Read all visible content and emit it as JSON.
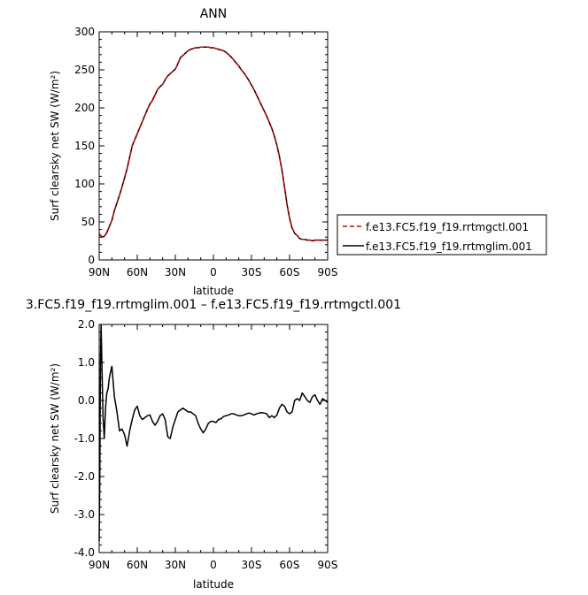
{
  "chart_data": [
    {
      "type": "line",
      "title": "ANN",
      "xlabel": "latitude",
      "ylabel": "Surf clearsky net SW (W/m²)",
      "xlim": [
        90,
        -90
      ],
      "ylim": [
        0,
        300
      ],
      "xticks": [
        90,
        60,
        30,
        0,
        -30,
        -60,
        -90
      ],
      "xtick_labels": [
        "90N",
        "60N",
        "30N",
        "0",
        "30S",
        "60S",
        "90S"
      ],
      "yticks": [
        0,
        50,
        100,
        150,
        200,
        250,
        300
      ],
      "ytick_labels": [
        "0",
        "50",
        "100",
        "150",
        "200",
        "250",
        "300"
      ],
      "legend_position": "right",
      "series": [
        {
          "name": "f.e13.FC5.f19_f19.rrtmgctl.001",
          "color": "#cc0000",
          "dash": "dashed",
          "x": [
            90,
            88,
            86,
            84,
            82,
            80,
            78,
            76,
            74,
            72,
            70,
            68,
            66,
            64,
            62,
            60,
            58,
            56,
            54,
            52,
            50,
            48,
            46,
            44,
            42,
            40,
            38,
            36,
            34,
            32,
            30,
            28,
            26,
            24,
            22,
            20,
            18,
            16,
            14,
            12,
            10,
            8,
            6,
            4,
            2,
            0,
            -2,
            -4,
            -6,
            -8,
            -10,
            -12,
            -14,
            -16,
            -18,
            -20,
            -22,
            -24,
            -26,
            -28,
            -30,
            -32,
            -34,
            -36,
            -38,
            -40,
            -42,
            -44,
            -46,
            -48,
            -50,
            -52,
            -54,
            -56,
            -58,
            -60,
            -62,
            -64,
            -66,
            -68,
            -70,
            -72,
            -74,
            -76,
            -78,
            -80,
            -82,
            -84,
            -86,
            -88,
            -90
          ],
          "y": [
            35,
            30,
            31,
            36,
            44,
            52,
            65,
            75,
            85,
            96,
            108,
            120,
            135,
            150,
            158,
            166,
            174,
            182,
            190,
            198,
            205,
            210,
            217,
            224,
            228,
            231,
            237,
            242,
            245,
            248,
            251,
            258,
            266,
            269,
            272,
            275,
            277,
            278,
            279,
            279,
            280,
            280,
            280,
            280,
            279,
            279,
            278,
            277,
            276,
            275,
            273,
            270,
            267,
            263,
            259,
            255,
            250,
            246,
            241,
            236,
            230,
            224,
            217,
            210,
            203,
            196,
            189,
            181,
            173,
            163,
            151,
            136,
            118,
            96,
            73,
            55,
            42,
            35,
            32,
            28,
            27,
            27,
            26,
            26,
            25,
            26,
            26,
            26,
            26,
            26,
            26
          ]
        },
        {
          "name": "f.e13.FC5.f19_f19.rrtmglim.001",
          "color": "#000000",
          "dash": "solid",
          "x": [
            90,
            88,
            86,
            84,
            82,
            80,
            78,
            76,
            74,
            72,
            70,
            68,
            66,
            64,
            62,
            60,
            58,
            56,
            54,
            52,
            50,
            48,
            46,
            44,
            42,
            40,
            38,
            36,
            34,
            32,
            30,
            28,
            26,
            24,
            22,
            20,
            18,
            16,
            14,
            12,
            10,
            8,
            6,
            4,
            2,
            0,
            -2,
            -4,
            -6,
            -8,
            -10,
            -12,
            -14,
            -16,
            -18,
            -20,
            -22,
            -24,
            -26,
            -28,
            -30,
            -32,
            -34,
            -36,
            -38,
            -40,
            -42,
            -44,
            -46,
            -48,
            -50,
            -52,
            -54,
            -56,
            -58,
            -60,
            -62,
            -64,
            -66,
            -68,
            -70,
            -72,
            -74,
            -76,
            -78,
            -80,
            -82,
            -84,
            -86,
            -88,
            -90
          ],
          "y": [
            35,
            30,
            31,
            36,
            44,
            52,
            65,
            75,
            85,
            96,
            108,
            120,
            135,
            150,
            158,
            166,
            174,
            182,
            190,
            198,
            205,
            210,
            217,
            224,
            228,
            231,
            237,
            242,
            245,
            248,
            251,
            258,
            266,
            269,
            272,
            275,
            277,
            278,
            279,
            279,
            280,
            280,
            280,
            280,
            279,
            279,
            278,
            277,
            276,
            275,
            273,
            270,
            267,
            263,
            259,
            255,
            250,
            246,
            241,
            236,
            230,
            224,
            217,
            210,
            203,
            196,
            189,
            181,
            173,
            163,
            151,
            136,
            118,
            96,
            73,
            55,
            42,
            35,
            32,
            28,
            27,
            27,
            26,
            26,
            25,
            26,
            26,
            26,
            26,
            26,
            26
          ]
        }
      ]
    },
    {
      "type": "line",
      "title": "3.FC5.f19_f19.rrtmglim.001 – f.e13.FC5.f19_f19.rrtmgctl.001",
      "xlabel": "latitude",
      "ylabel": "Surf clearsky net SW (W/m²)",
      "xlim": [
        90,
        -90
      ],
      "ylim": [
        -4.0,
        2.0
      ],
      "xticks": [
        90,
        60,
        30,
        0,
        -30,
        -60,
        -90
      ],
      "xtick_labels": [
        "90N",
        "60N",
        "30N",
        "0",
        "30S",
        "60S",
        "90S"
      ],
      "yticks": [
        -4,
        -3,
        -2,
        -1,
        0,
        1,
        2
      ],
      "ytick_labels": [
        "-4.0",
        "-3.0",
        "-2.0",
        "-1.0",
        "0.0",
        "1.0",
        "2.0"
      ],
      "series": [
        {
          "color": "#000000",
          "x": [
            90,
            89.5,
            89,
            88.5,
            88,
            87,
            86,
            85,
            84,
            83,
            82,
            80,
            78,
            76,
            74,
            72,
            70,
            68,
            66,
            64,
            62,
            60,
            58,
            56,
            54,
            52,
            50,
            48,
            46,
            44,
            42,
            40,
            38,
            36,
            34,
            32,
            30,
            28,
            26,
            24,
            22,
            20,
            18,
            16,
            14,
            12,
            10,
            8,
            6,
            4,
            2,
            0,
            -2,
            -4,
            -6,
            -8,
            -10,
            -12,
            -14,
            -16,
            -18,
            -20,
            -22,
            -24,
            -26,
            -28,
            -30,
            -32,
            -34,
            -36,
            -38,
            -40,
            -42,
            -44,
            -46,
            -48,
            -50,
            -52,
            -54,
            -56,
            -58,
            -60,
            -62,
            -64,
            -66,
            -68,
            -70,
            -72,
            -74,
            -76,
            -78,
            -80,
            -82,
            -84,
            -86,
            -88,
            -90
          ],
          "y": [
            -3.7,
            -2.0,
            1.0,
            2.0,
            1.2,
            -0.4,
            -1.0,
            -0.2,
            0.2,
            0.3,
            0.6,
            0.9,
            0.1,
            -0.3,
            -0.8,
            -0.75,
            -0.9,
            -1.2,
            -0.8,
            -0.5,
            -0.25,
            -0.15,
            -0.4,
            -0.5,
            -0.45,
            -0.4,
            -0.38,
            -0.55,
            -0.65,
            -0.55,
            -0.4,
            -0.35,
            -0.5,
            -0.95,
            -1.0,
            -0.7,
            -0.5,
            -0.3,
            -0.25,
            -0.2,
            -0.25,
            -0.3,
            -0.3,
            -0.35,
            -0.4,
            -0.6,
            -0.75,
            -0.85,
            -0.75,
            -0.6,
            -0.55,
            -0.55,
            -0.58,
            -0.5,
            -0.48,
            -0.42,
            -0.4,
            -0.38,
            -0.35,
            -0.35,
            -0.38,
            -0.4,
            -0.4,
            -0.38,
            -0.35,
            -0.33,
            -0.35,
            -0.38,
            -0.35,
            -0.33,
            -0.32,
            -0.33,
            -0.35,
            -0.45,
            -0.4,
            -0.45,
            -0.38,
            -0.2,
            -0.1,
            -0.15,
            -0.3,
            -0.35,
            -0.3,
            0.0,
            0.05,
            0.0,
            0.2,
            0.1,
            0.0,
            -0.05,
            0.1,
            0.15,
            0.0,
            -0.1,
            0.05,
            0.0,
            -0.05
          ]
        }
      ]
    }
  ]
}
